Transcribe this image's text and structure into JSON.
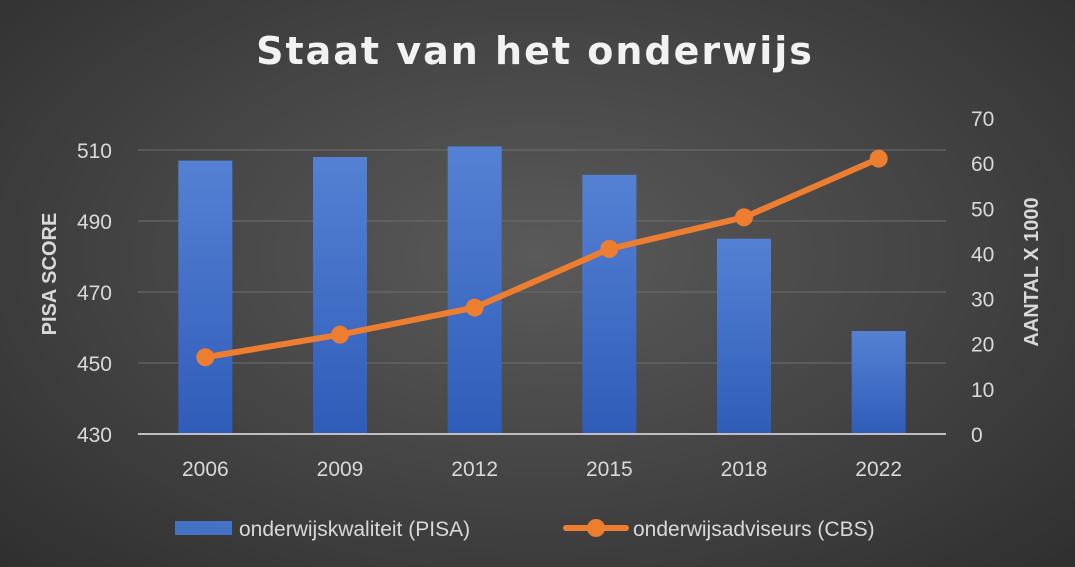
{
  "chart_data": {
    "type": "bar+line",
    "title": "Staat van het onderwijs",
    "categories": [
      "2006",
      "2009",
      "2012",
      "2015",
      "2018",
      "2022"
    ],
    "ylabel": "PISA SCORE",
    "y2label": "AANTAL X 1000",
    "ylim": [
      430,
      519
    ],
    "yticks": [
      430,
      450,
      470,
      490,
      510
    ],
    "y2lim": [
      0,
      70
    ],
    "y2ticks": [
      0,
      10,
      20,
      30,
      40,
      50,
      60,
      70
    ],
    "grid": true,
    "legend_position": "bottom",
    "series": [
      {
        "name": "onderwijskwaliteit (PISA)",
        "type": "bar",
        "axis": "left",
        "color": "#4472C4",
        "values": [
          507,
          508,
          511,
          503,
          485,
          459
        ]
      },
      {
        "name": "onderwijsadviseurs (CBS)",
        "type": "line",
        "axis": "right",
        "color": "#ED7D31",
        "values": [
          17,
          22,
          28,
          41,
          48,
          61
        ]
      }
    ]
  }
}
